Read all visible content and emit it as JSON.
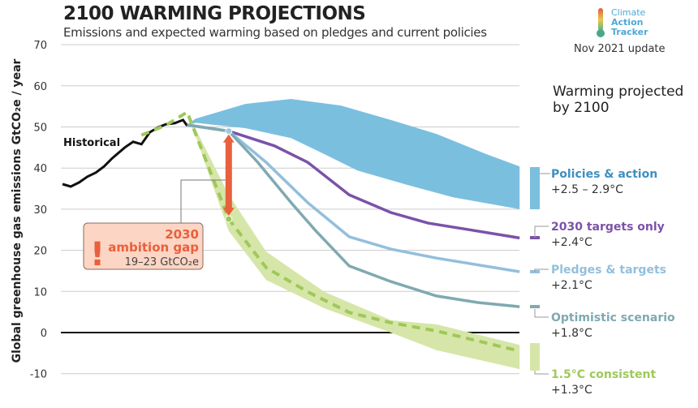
{
  "header": {
    "title": "2100 WARMING PROJECTIONS",
    "subtitle": "Emissions and expected warming based on pledges and current policies",
    "logo": {
      "line1": "Climate",
      "line2": "Action",
      "line3": "Tracker"
    },
    "update": "Nov 2021 update"
  },
  "chart_data": {
    "type": "line",
    "ylabel": "Global greenhouse gas emissions  GtCO₂e / year",
    "ylim": [
      -10,
      70
    ],
    "yticks": [
      -10,
      0,
      10,
      20,
      30,
      40,
      50,
      60,
      70
    ],
    "grid": true,
    "legend_title": "Warming projected by 2100",
    "legend_title_lines": [
      "Warming projected",
      "by 2100"
    ],
    "historical": {
      "name": "Historical",
      "color": "#111111",
      "x": [
        1990,
        1992,
        1994,
        1996,
        1998,
        2000,
        2002,
        2005,
        2007,
        2009,
        2011,
        2013,
        2015,
        2017,
        2019,
        2020
      ],
      "y": [
        36.1,
        35.5,
        36.5,
        37.9,
        38.9,
        40.4,
        42.4,
        45.0,
        46.4,
        45.8,
        48.7,
        49.9,
        50.7,
        50.9,
        51.7,
        50.3
      ]
    },
    "policies_band": {
      "name": "Policies & action",
      "warming": "+2.5 – 2.9°C",
      "color": "#7bbfdf",
      "label_color": "#3f8fc0",
      "x": [
        2020,
        2022,
        2034,
        2045,
        2057,
        2069,
        2080,
        2092,
        2100
      ],
      "upper": [
        50.5,
        52,
        55.6,
        56.8,
        55.2,
        51.7,
        48.3,
        43.4,
        40.4
      ],
      "x_lower": [
        2020,
        2022,
        2034,
        2045,
        2053,
        2061,
        2073,
        2084,
        2100
      ],
      "lower": [
        50,
        51,
        49.7,
        47.3,
        43.4,
        39.4,
        35.9,
        32.9,
        30
      ]
    },
    "series": [
      {
        "name": "2030 targets only",
        "warming": "+2.4°C",
        "color": "#7b52a8",
        "x": [
          2020,
          2030,
          2041,
          2049,
          2059,
          2069,
          2078,
          2088,
          2100
        ],
        "y": [
          50.5,
          49,
          45.4,
          41.4,
          33.5,
          29.2,
          26.6,
          25,
          23
        ]
      },
      {
        "name": "Pledges & targets",
        "warming": "+2.1°C",
        "color": "#93bfdc",
        "x": [
          2020,
          2030,
          2039,
          2049,
          2059,
          2069,
          2080,
          2100
        ],
        "y": [
          50.5,
          49,
          41.4,
          31.6,
          23.3,
          20.3,
          18.1,
          14.8
        ]
      },
      {
        "name": "Optimistic scenario",
        "warming": "+1.8°C",
        "color": "#7fa9b0",
        "x": [
          2020,
          2030,
          2037,
          2045,
          2051,
          2059,
          2069,
          2080,
          2090,
          2100
        ],
        "y": [
          50.5,
          49,
          41.4,
          31.6,
          24.7,
          16.2,
          12.4,
          8.9,
          7.3,
          6.3
        ]
      },
      {
        "name": "1.5°C consistent",
        "warming": "+1.3°C",
        "color": "#9fc85a",
        "dashed": true,
        "x": [
          2009,
          2015,
          2020,
          2030,
          2039,
          2049,
          2059,
          2069,
          2080,
          2100
        ],
        "y": [
          48,
          50.5,
          53.6,
          27.6,
          15.8,
          9.9,
          4.9,
          2.4,
          0.4,
          -4.5
        ]
      }
    ],
    "green_band": {
      "color": "#d6e6a8",
      "x": [
        2020,
        2030,
        2039,
        2053,
        2069,
        2080,
        2100
      ],
      "upper": [
        53.6,
        33.5,
        19.7,
        9.9,
        3,
        2,
        -3
      ],
      "lower": [
        53.6,
        24.7,
        12.8,
        5.9,
        0,
        -4.3,
        -8.9
      ]
    },
    "annotation": {
      "line1": "2030",
      "line2": "ambition gap",
      "line3": "19–23  GtCO₂e",
      "icon": "exclamation-icon",
      "box_color": "#fcd5c4",
      "text_color": "#e8603c",
      "arrow_color": "#e8603c",
      "year": 2030,
      "from": 49,
      "to": 27.6
    }
  }
}
